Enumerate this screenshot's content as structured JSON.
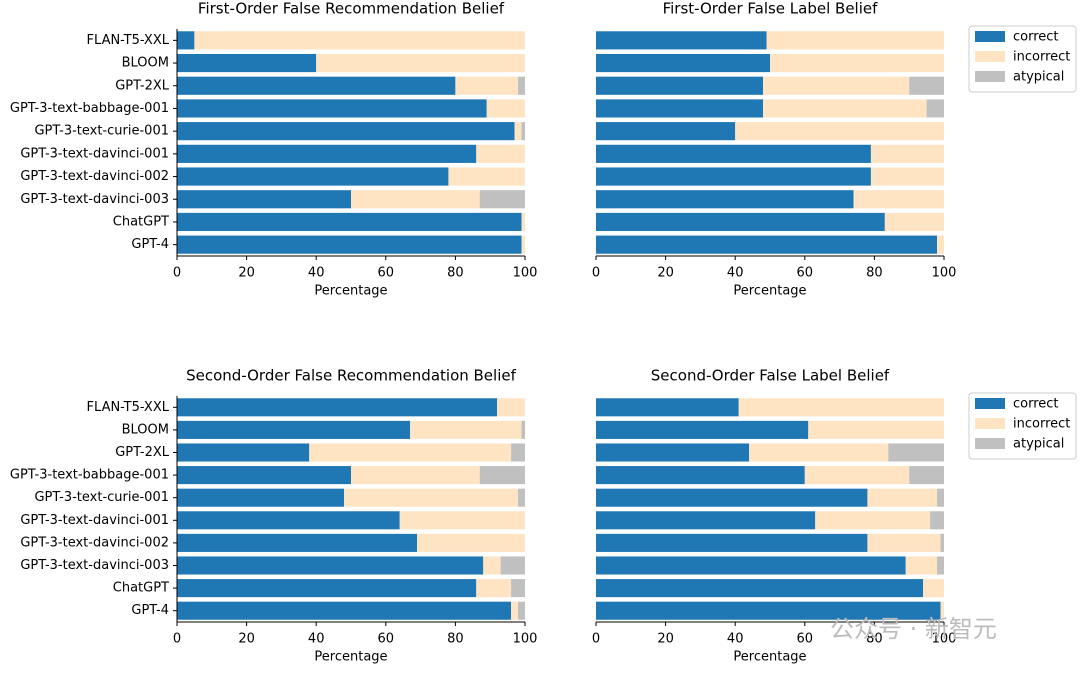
{
  "chart_data": [
    {
      "type": "stacked-barh",
      "title": "First-Order False Recommendation Belief",
      "xlabel": "Percentage",
      "categories": [
        "FLAN-T5-XXL",
        "BLOOM",
        "GPT-2XL",
        "GPT-3-text-babbage-001",
        "GPT-3-text-curie-001",
        "GPT-3-text-davinci-001",
        "GPT-3-text-davinci-002",
        "GPT-3-text-davinci-003",
        "ChatGPT",
        "GPT-4"
      ],
      "series": [
        {
          "name": "correct",
          "color": "#1f77b4",
          "values": [
            5,
            40,
            80,
            89,
            97,
            86,
            78,
            50,
            99,
            99
          ]
        },
        {
          "name": "incorrect",
          "color": "#ffe4c4",
          "values": [
            95,
            60,
            18,
            11,
            2,
            14,
            22,
            37,
            1,
            1
          ]
        },
        {
          "name": "atypical",
          "color": "#c0c0c0",
          "values": [
            0,
            0,
            2,
            0,
            1,
            0,
            0,
            13,
            0,
            0
          ]
        }
      ],
      "xlim": [
        0,
        100
      ],
      "xticks": [
        0,
        20,
        40,
        60,
        80,
        100
      ]
    },
    {
      "type": "stacked-barh",
      "title": "First-Order False Label Belief",
      "xlabel": "Percentage",
      "legend": "right",
      "series": [
        {
          "name": "correct",
          "color": "#1f77b4",
          "values": [
            49,
            50,
            48,
            48,
            40,
            79,
            79,
            74,
            83,
            98
          ]
        },
        {
          "name": "incorrect",
          "color": "#ffe4c4",
          "values": [
            51,
            50,
            42,
            47,
            60,
            21,
            21,
            26,
            17,
            2
          ]
        },
        {
          "name": "atypical",
          "color": "#c0c0c0",
          "values": [
            0,
            0,
            10,
            5,
            0,
            0,
            0,
            0,
            0,
            0
          ]
        }
      ],
      "xlim": [
        0,
        100
      ],
      "xticks": [
        0,
        20,
        40,
        60,
        80,
        100
      ]
    },
    {
      "type": "stacked-barh",
      "title": "Second-Order False Recommendation Belief",
      "xlabel": "Percentage",
      "categories": [
        "FLAN-T5-XXL",
        "BLOOM",
        "GPT-2XL",
        "GPT-3-text-babbage-001",
        "GPT-3-text-curie-001",
        "GPT-3-text-davinci-001",
        "GPT-3-text-davinci-002",
        "GPT-3-text-davinci-003",
        "ChatGPT",
        "GPT-4"
      ],
      "series": [
        {
          "name": "correct",
          "color": "#1f77b4",
          "values": [
            92,
            67,
            38,
            50,
            48,
            64,
            69,
            88,
            86,
            96
          ]
        },
        {
          "name": "incorrect",
          "color": "#ffe4c4",
          "values": [
            8,
            32,
            58,
            37,
            50,
            36,
            31,
            5,
            10,
            2
          ]
        },
        {
          "name": "atypical",
          "color": "#c0c0c0",
          "values": [
            0,
            1,
            4,
            13,
            2,
            0,
            0,
            7,
            4,
            2
          ]
        }
      ],
      "xlim": [
        0,
        100
      ],
      "xticks": [
        0,
        20,
        40,
        60,
        80,
        100
      ]
    },
    {
      "type": "stacked-barh",
      "title": "Second-Order False Label Belief",
      "xlabel": "Percentage",
      "legend": "right",
      "series": [
        {
          "name": "correct",
          "color": "#1f77b4",
          "values": [
            41,
            61,
            44,
            60,
            78,
            63,
            78,
            89,
            94,
            99
          ]
        },
        {
          "name": "incorrect",
          "color": "#ffe4c4",
          "values": [
            59,
            39,
            40,
            30,
            20,
            33,
            21,
            9,
            6,
            1
          ]
        },
        {
          "name": "atypical",
          "color": "#c0c0c0",
          "values": [
            0,
            0,
            16,
            10,
            2,
            4,
            1,
            2,
            0,
            0
          ]
        }
      ],
      "xlim": [
        0,
        100
      ],
      "xticks": [
        0,
        20,
        40,
        60,
        80,
        100
      ]
    }
  ],
  "watermark": "公众号 · 新智元"
}
